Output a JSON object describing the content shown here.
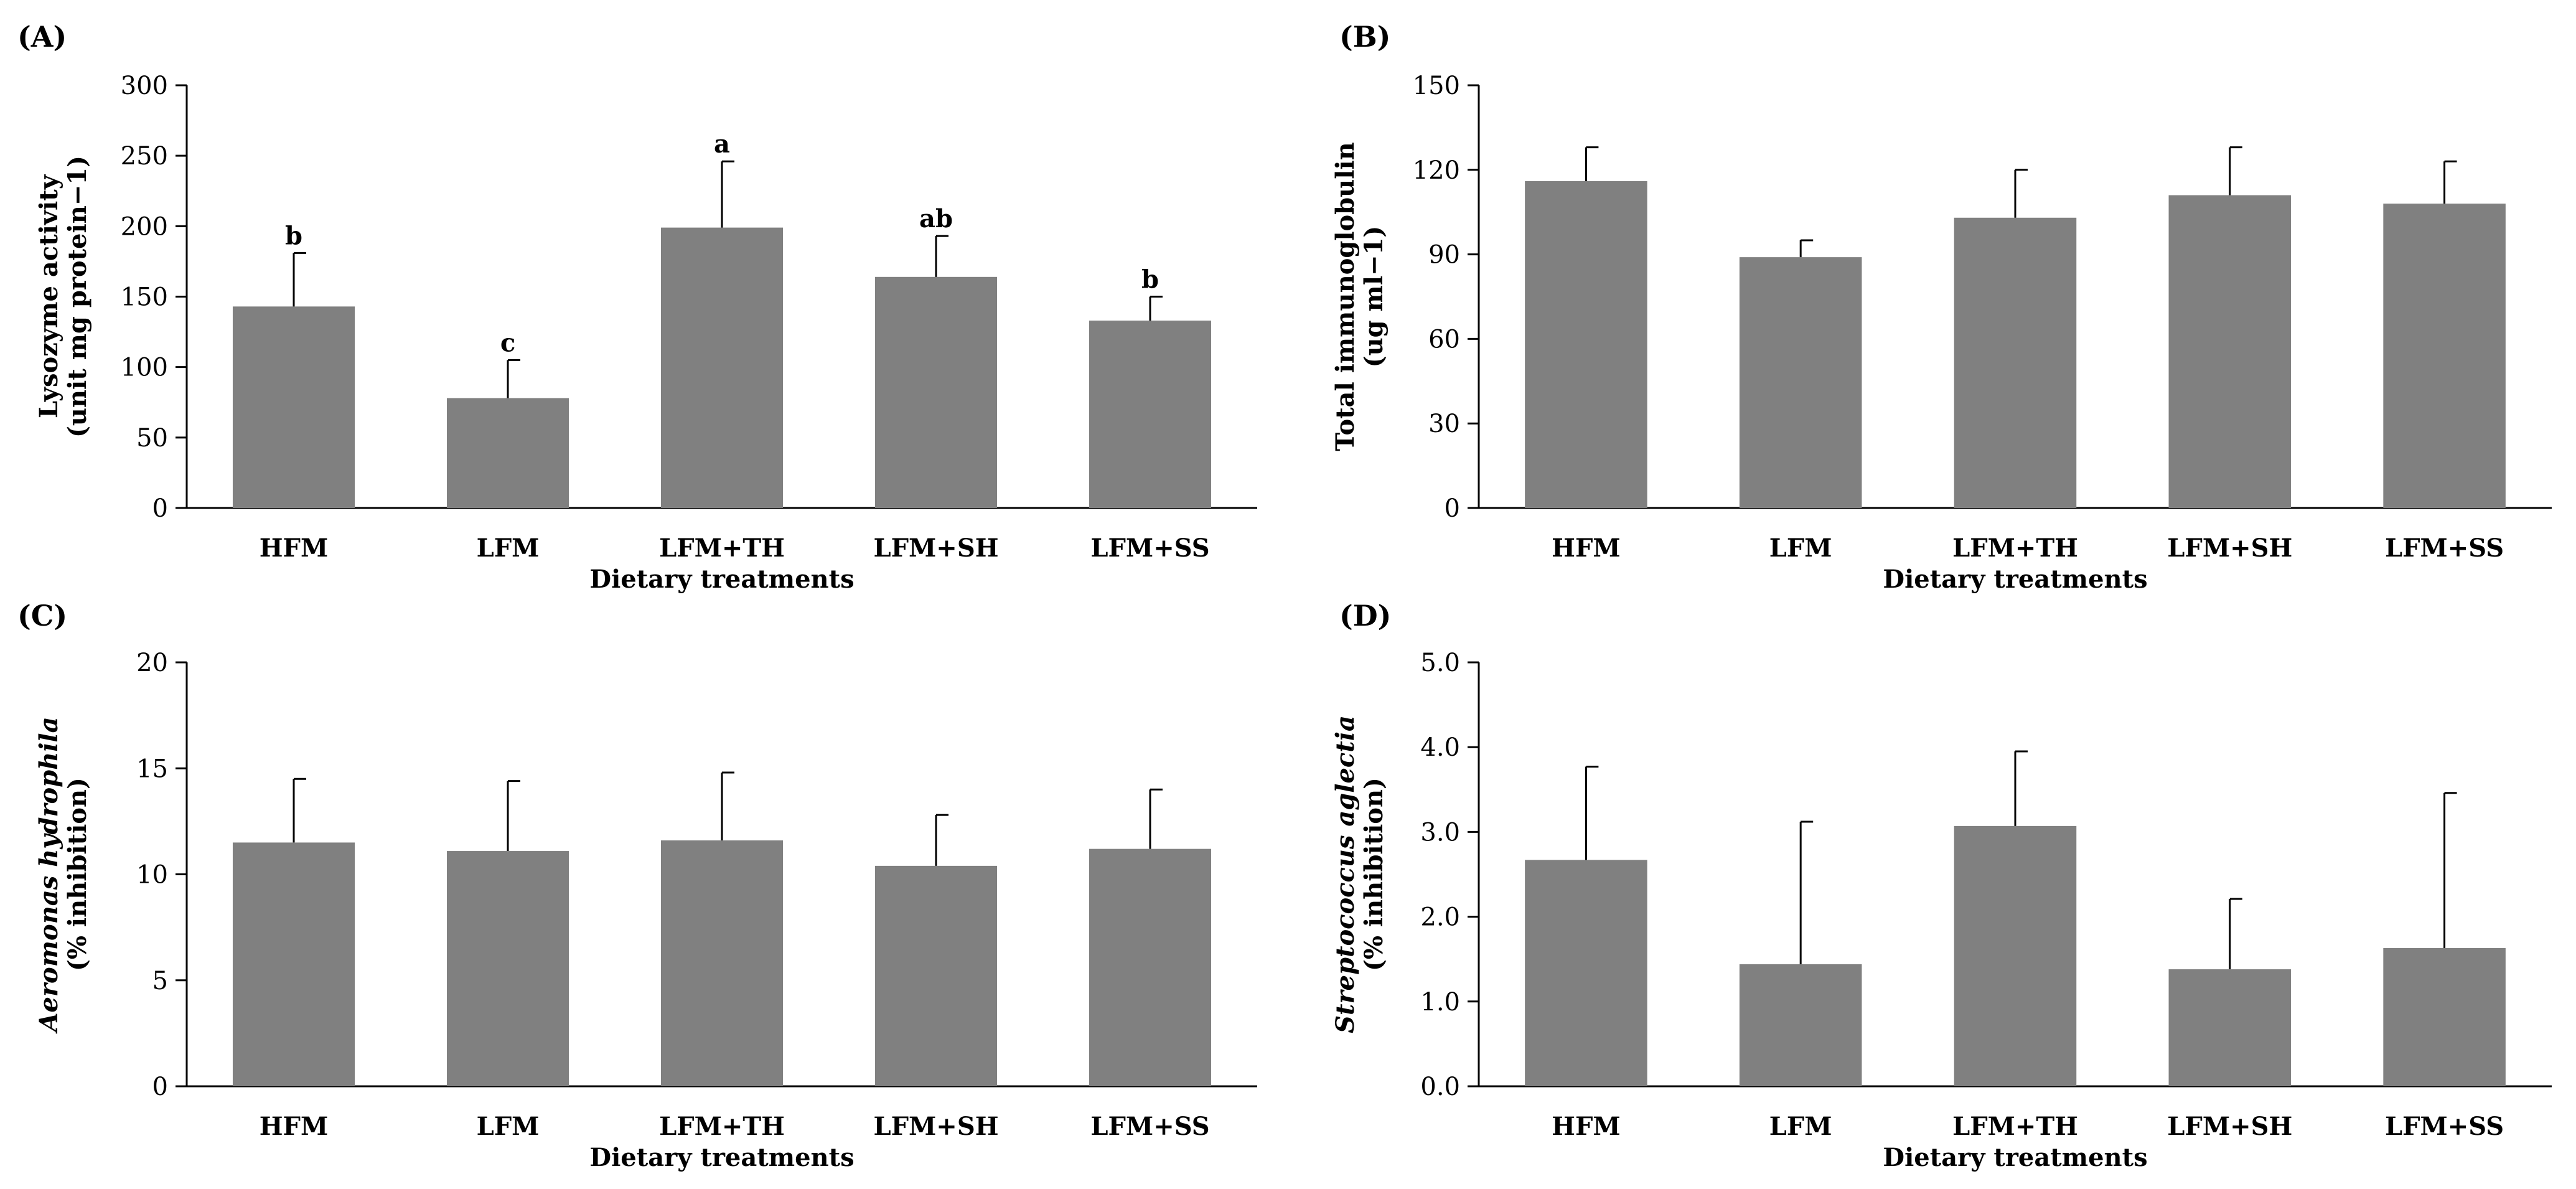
{
  "chart_data": [
    {
      "type": "bar",
      "panel": "(A)",
      "title": "",
      "categories": [
        "HFM",
        "LFM",
        "LFM+TH",
        "LFM+SH",
        "LFM+SS"
      ],
      "values": [
        143,
        78,
        199,
        164,
        133
      ],
      "errors": [
        38,
        27,
        47,
        29,
        17
      ],
      "letters": [
        "b",
        "c",
        "a",
        "ab",
        "b"
      ],
      "xlabel": "Dietary treatments",
      "ylabel_lines": [
        "Lysozyme activity",
        "(unit mg protein−1)"
      ],
      "ylabel_italic": "",
      "ylim": [
        0,
        300
      ],
      "yticks": [
        "0",
        "50",
        "100",
        "150",
        "200",
        "250",
        "300"
      ],
      "bar_color": "#808080"
    },
    {
      "type": "bar",
      "panel": "(B)",
      "title": "",
      "categories": [
        "HFM",
        "LFM",
        "LFM+TH",
        "LFM+SH",
        "LFM+SS"
      ],
      "values": [
        116,
        89,
        103,
        111,
        108
      ],
      "errors": [
        12,
        6,
        17,
        17,
        15
      ],
      "letters": [
        "",
        "",
        "",
        "",
        ""
      ],
      "xlabel": "Dietary treatments",
      "ylabel_lines": [
        "Total immunoglobulin",
        "(ug ml−1)"
      ],
      "ylabel_italic": "",
      "ylim": [
        0,
        150
      ],
      "yticks": [
        "0",
        "30",
        "60",
        "90",
        "120",
        "150"
      ],
      "bar_color": "#808080"
    },
    {
      "type": "bar",
      "panel": "(C)",
      "title": "",
      "categories": [
        "HFM",
        "LFM",
        "LFM+TH",
        "LFM+SH",
        "LFM+SS"
      ],
      "values": [
        11.5,
        11.1,
        11.6,
        10.4,
        11.2
      ],
      "errors": [
        3.0,
        3.3,
        3.2,
        2.4,
        2.8
      ],
      "letters": [
        "",
        "",
        "",
        "",
        ""
      ],
      "xlabel": "Dietary treatments",
      "ylabel_lines": [
        "Aeromonas hydrophila",
        "(% inhibition)"
      ],
      "ylabel_italic": "Aeromonas hydrophila",
      "ylim": [
        0,
        20
      ],
      "yticks": [
        "0",
        "5",
        "10",
        "15",
        "20"
      ],
      "bar_color": "#808080"
    },
    {
      "type": "bar",
      "panel": "(D)",
      "title": "",
      "categories": [
        "HFM",
        "LFM",
        "LFM+TH",
        "LFM+SH",
        "LFM+SS"
      ],
      "values": [
        2.67,
        1.44,
        3.07,
        1.38,
        1.63
      ],
      "errors": [
        1.1,
        1.68,
        0.88,
        0.83,
        1.83
      ],
      "letters": [
        "",
        "",
        "",
        "",
        ""
      ],
      "xlabel": "Dietary treatments",
      "ylabel_lines": [
        "Streptococcus aglectia",
        "(% inhibition)"
      ],
      "ylabel_italic": "Streptococcus aglectia",
      "ylim": [
        0,
        5
      ],
      "yticks": [
        "0.0",
        "1.0",
        "2.0",
        "3.0",
        "4.0",
        "5.0"
      ],
      "bar_color": "#808080"
    }
  ]
}
